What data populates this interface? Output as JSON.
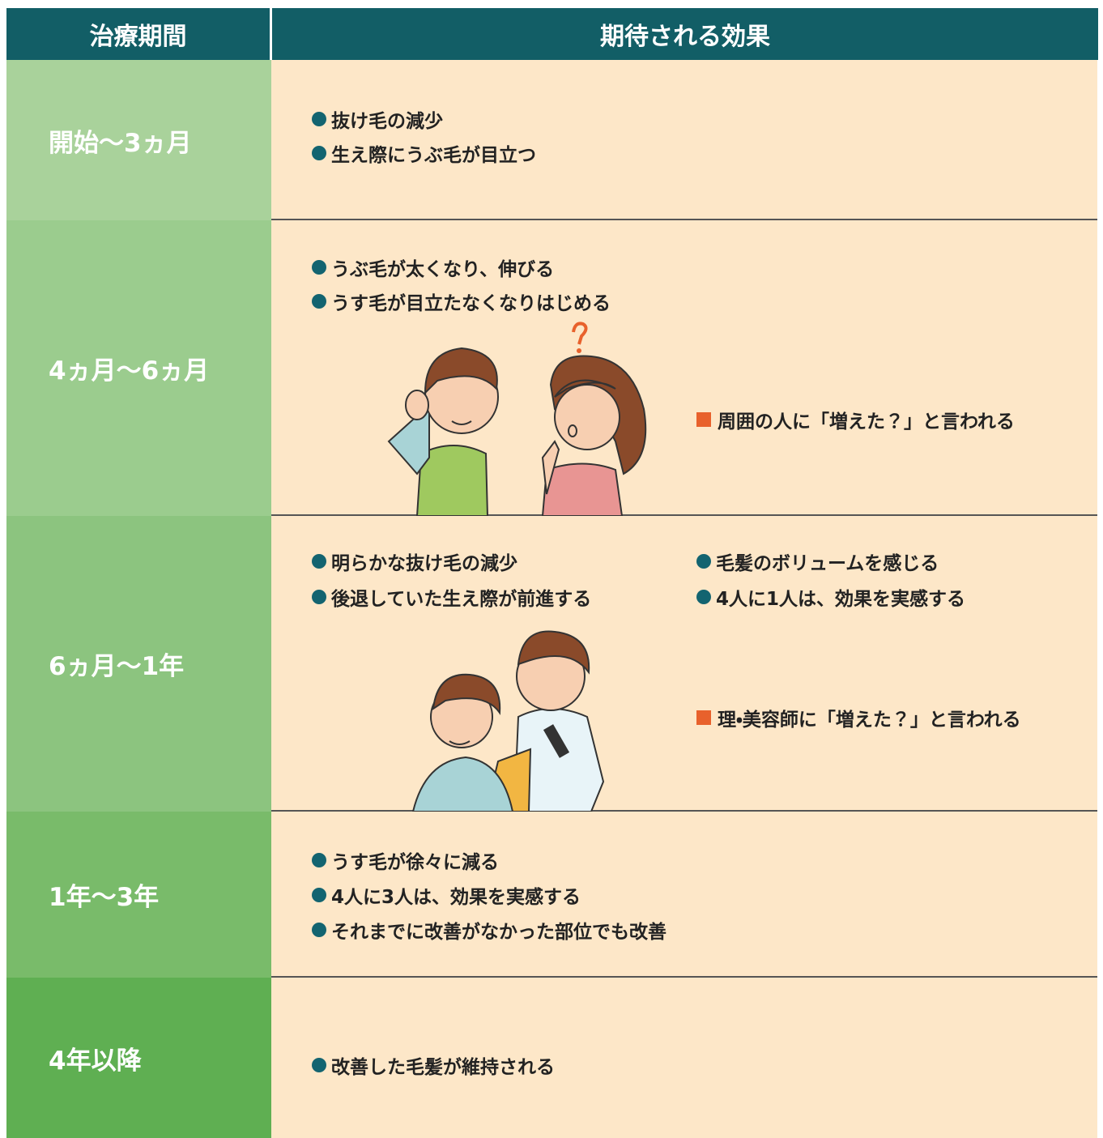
{
  "header": {
    "period": "治療期間",
    "effect": "期待される効果"
  },
  "rows": [
    {
      "period": "開始～3ヵ月",
      "bullets": [
        "抜け毛の減少",
        "生え際にうぶ毛が目立つ"
      ]
    },
    {
      "period": "4ヵ月～6ヵ月",
      "bullets": [
        "うぶ毛が太くなり、伸びる",
        "うす毛が目立たなくなりはじめる"
      ],
      "note": "周囲の人に「増えた？」と言われる"
    },
    {
      "period": "6ヵ月～1年",
      "bullets": [
        "明らかな抜け毛の減少",
        "後退していた生え際が前進する"
      ],
      "bullets_right": [
        "毛髪のボリュームを感じる",
        "4人に1人は、効果を実感する"
      ],
      "note": "理・美容師に「増えた？」と言われる"
    },
    {
      "period": "1年～3年",
      "bullets": [
        "うす毛が徐々に減る",
        "4人に3人は、効果を実感する",
        "それまでに改善がなかった部位でも改善"
      ]
    },
    {
      "period": "4年以降",
      "bullets": [
        "改善した毛髪が維持される"
      ]
    }
  ]
}
